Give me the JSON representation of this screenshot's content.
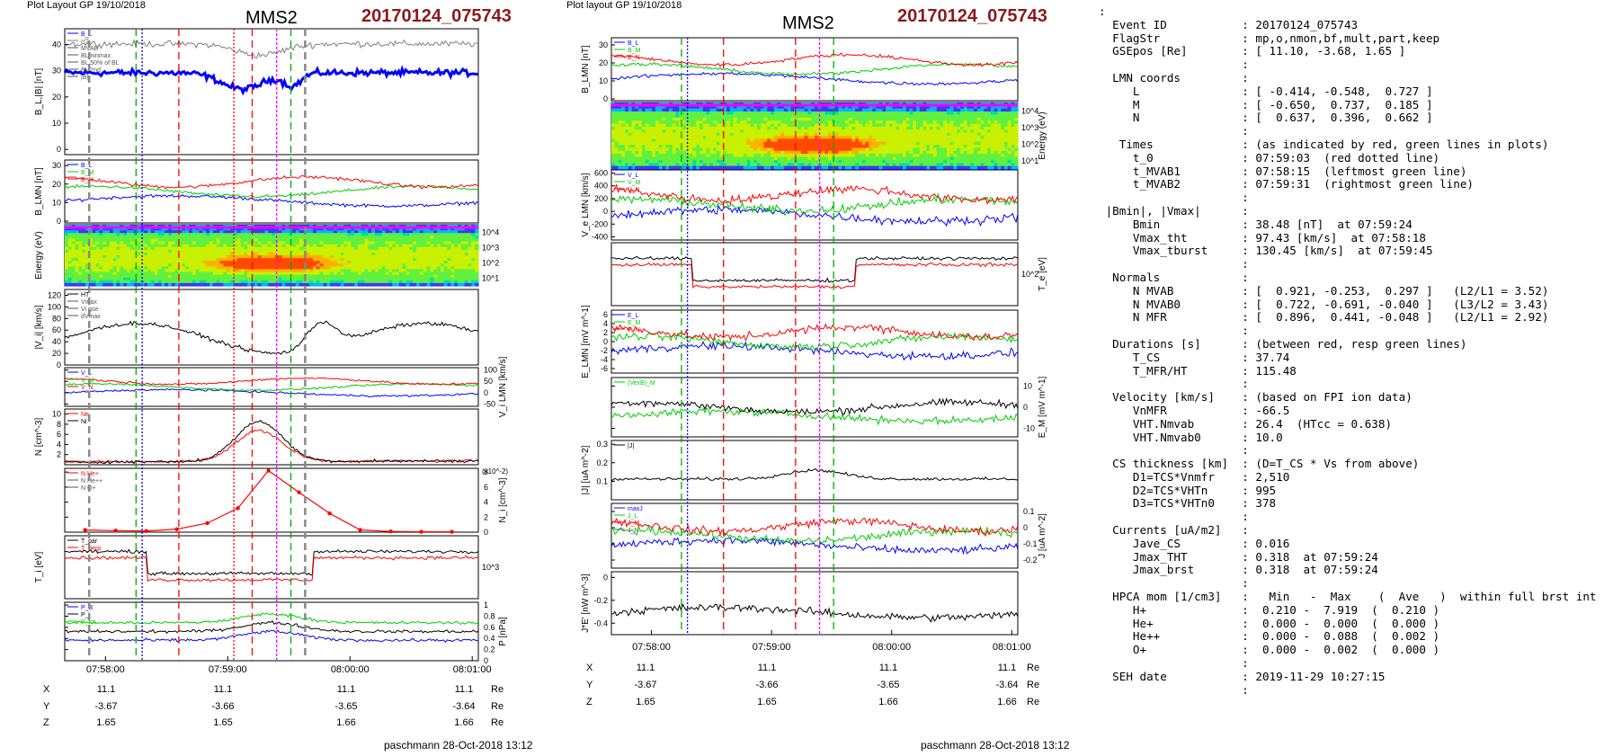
{
  "left_plot": {
    "header": "Plot Layout GP 19/10/2018",
    "title": "MMS2",
    "event": "20170124_075743",
    "signature": "paschmann 28-Oct-2018 13:12",
    "time_ticks": [
      "07:58:00",
      "07:59:00",
      "08:00:00",
      "08:01:00"
    ],
    "position_rows": [
      {
        "name": "X",
        "values": [
          "11.1",
          "11.1",
          "11.1",
          "11.1"
        ],
        "unit": "Re"
      },
      {
        "name": "Y",
        "values": [
          "-3.67",
          "-3.66",
          "-3.65",
          "-3.64"
        ],
        "unit": "Re"
      },
      {
        "name": "Z",
        "values": [
          "1.65",
          "1.65",
          "1.66",
          "1.66"
        ],
        "unit": "Re"
      }
    ]
  },
  "right_plot": {
    "header": "Plot layout GP 19/10/2018",
    "title": "MMS2",
    "event": "20170124_075743",
    "signature": "paschmann 28-Oct-2018 13:12",
    "time_ticks": [
      "07:58:00",
      "07:59:00",
      "08:00:00",
      "08:01:00"
    ],
    "position_rows": [
      {
        "name": "X",
        "values": [
          "11.1",
          "11.1",
          "11.1",
          "11.1"
        ],
        "unit": "Re"
      },
      {
        "name": "Y",
        "values": [
          "-3.67",
          "-3.66",
          "-3.65",
          "-3.64"
        ],
        "unit": "Re"
      },
      {
        "name": "Z",
        "values": [
          "1.65",
          "1.65",
          "1.66",
          "1.66"
        ],
        "unit": "Re"
      }
    ]
  },
  "summary_lines": [
    ":",
    "  Event ID           : 20170124_075743",
    "  FlagStr            : mp,o,nmon,bf,mult,part,keep",
    "  GSEpos [Re]        : [ 11.10, -3.68, 1.65 ]",
    "                     :",
    "  LMN coords         :",
    "     L               : [ -0.414, -0.548,  0.727 ]",
    "     M               : [ -0.650,  0.737,  0.185 ]",
    "     N               : [  0.637,  0.396,  0.662 ]",
    "                     :",
    "   Times             : (as indicated by red, green lines in plots)",
    "     t_0             : 07:59:03  (red dotted line)",
    "     t_MVAB1         : 07:58:15  (leftmost green line)",
    "     t_MVAB2         : 07:59:31  (rightmost green line)",
    "                     :",
    " |Bmin|, |Vmax|      :",
    "     Bmin            : 38.48 [nT]  at 07:59:24",
    "     Vmax_tht        : 97.43 [km/s]  at 07:58:18",
    "     Vmax_tburst     : 130.45 [km/s]  at 07:59:45",
    "                     :",
    "  Normals            :",
    "     N MVAB          : [  0.921, -0.253,  0.297 ]   (L2/L1 = 3.52)",
    "     N MVAB0         : [  0.722, -0.691, -0.040 ]   (L3/L2 = 3.43)",
    "     N MFR           : [  0.896,  0.441, -0.048 ]   (L2/L1 = 2.92)",
    "                     :",
    "  Durations [s]      : (between red, resp green lines)",
    "     T_CS            : 37.74",
    "     T_MFR/HT        : 115.48",
    "                     :",
    "  Velocity [km/s]    : (based on FPI ion data)",
    "     VnMFR           : -66.5",
    "     VHT.Nmvab       : 26.4  (HTcc = 0.638)",
    "     VHT.Nmvab0      : 10.0",
    "                     :",
    "  CS thickness [km]  : (D=T_CS * Vs from above)",
    "     D1=TCS*Vnmfr    : 2,510",
    "     D2=TCS*VHTn     : 995",
    "     D3=TCS*VHTn0    : 378",
    "                     :",
    "  Currents [uA/m2]   :",
    "     Jave_CS         : 0.016",
    "     Jmax_THT        : 0.318  at 07:59:24",
    "     Jmax_brst       : 0.318  at 07:59:24",
    "                     :",
    "  HPCA mom [1/cm3]   :   Min   -  Max    (  Ave   )  within full brst int",
    "     H+              :  0.210 -  7.919  (  0.210 )",
    "     He+             :  0.000 -  0.000  (  0.000 )",
    "     He++            :  0.000 -  0.088  (  0.002 )",
    "     O+              :  0.000 -  0.002  (  0.000 )",
    "                     :",
    "  SEH date           : 2019-11-29 10:27:15",
    "                     :"
  ],
  "chart_data": [
    {
      "type": "line",
      "name": "left-panel-stack",
      "x_axis": {
        "ticks": [
          "07:58:00",
          "07:59:00",
          "08:00:00",
          "08:01:00"
        ]
      },
      "panels": [
        {
          "id": "L1",
          "ylabel": "B_L,|B| [nT]",
          "yticks": [
            0,
            10,
            20,
            30,
            40
          ],
          "ylim": [
            -2,
            46
          ],
          "legend": [
            "B_L",
            "HT",
            "MVAB",
            "BLminmax",
            "BL 50% of BL",
            "BL 2nd",
            "|B|"
          ],
          "series": [
            {
              "name": "|B|",
              "color": "#0000ff"
            },
            {
              "name": "B_L",
              "color": "#808080"
            }
          ]
        },
        {
          "id": "L2",
          "ylabel": "B_LMN [nT]",
          "yticks": [
            0,
            10,
            20,
            30
          ],
          "ylim": [
            -1,
            33
          ],
          "legend": [
            "B_L",
            "B_M",
            "B_N"
          ],
          "series": [
            {
              "name": "B_L",
              "color": "#0000ff"
            },
            {
              "name": "B_M",
              "color": "#00cc00"
            },
            {
              "name": "B_N",
              "color": "#ff0000"
            }
          ]
        },
        {
          "id": "L3",
          "ylabel": "Energy (eV)",
          "type": "spectrogram",
          "ytick_labels": [
            "10^1",
            "10^2",
            "10^3",
            "10^4"
          ]
        },
        {
          "id": "L4",
          "ylabel": "|V_i| [km/s]",
          "yticks": [
            0,
            20,
            40,
            60,
            80,
            100,
            120
          ],
          "ylim": [
            0,
            130
          ],
          "legend": [
            "HT",
            "Vmax",
            "Vi gse",
            "dVmax"
          ],
          "series": [
            {
              "name": "|V_i|",
              "color": "#000000"
            }
          ]
        },
        {
          "id": "L5",
          "ylabel": "V_i LMN [km/s]",
          "yticks": [
            100,
            50,
            0,
            -50
          ],
          "ylim": [
            -60,
            110
          ],
          "legend": [
            "V_L",
            "V_M",
            "V_N"
          ],
          "series": [
            {
              "name": "V_L",
              "color": "#0000ff"
            },
            {
              "name": "V_M",
              "color": "#00cc00"
            },
            {
              "name": "V_N",
              "color": "#ff0000"
            }
          ]
        },
        {
          "id": "L6",
          "ylabel": "N [cm^-3]",
          "yticks": [
            2,
            4,
            6,
            8,
            10
          ],
          "ylim": [
            0,
            11
          ],
          "legend": [
            "Ne",
            "Ni"
          ],
          "series": [
            {
              "name": "Ne",
              "color": "#ff0000"
            },
            {
              "name": "Ni",
              "color": "#000000"
            }
          ]
        },
        {
          "id": "L7",
          "ylabel": "N_i [cm^-3]",
          "yscale": "(x10^-2)",
          "yticks": [
            0,
            2,
            4,
            6,
            8
          ],
          "ylim": [
            0,
            8.5
          ],
          "legend": [
            "N He+",
            "N He++",
            "N O+"
          ],
          "series": [
            {
              "name": "N He++",
              "color": "#ff0000",
              "x": [
                "07:57:50",
                "07:58:05",
                "07:58:20",
                "07:58:35",
                "07:58:50",
                "07:59:05",
                "07:59:20",
                "07:59:35",
                "07:59:50",
                "08:00:05",
                "08:00:20",
                "08:00:35",
                "08:00:50"
              ],
              "values": [
                0.3,
                0.2,
                0.15,
                0.4,
                1.2,
                3.2,
                8.2,
                5.3,
                2.5,
                0.3,
                0.1,
                0.05,
                0.05
              ]
            }
          ]
        },
        {
          "id": "L8",
          "ylabel": "T_i [eV]",
          "ytick_labels": [
            "10^3"
          ],
          "legend": [
            "T_par",
            "T_perp"
          ],
          "series": [
            {
              "name": "T_par",
              "color": "#000000"
            },
            {
              "name": "T_perp",
              "color": "#ff0000"
            }
          ]
        },
        {
          "id": "L9",
          "ylabel": "P [nPa]",
          "yticks": [
            0.0,
            0.2,
            0.4,
            0.6,
            0.8,
            1.0
          ],
          "ylim": [
            0,
            1.05
          ],
          "legend": [
            "P_B",
            "P_i",
            "P_tot"
          ],
          "series": [
            {
              "name": "P_B",
              "color": "#0000ff"
            },
            {
              "name": "P_i",
              "color": "#000000"
            },
            {
              "name": "P_tot",
              "color": "#00cc00"
            }
          ]
        }
      ]
    },
    {
      "type": "line",
      "name": "right-panel-stack",
      "x_axis": {
        "ticks": [
          "07:58:00",
          "07:59:00",
          "08:00:00",
          "08:01:00"
        ]
      },
      "panels": [
        {
          "id": "R1",
          "ylabel": "B_LMN [nT]",
          "yticks": [
            0,
            10,
            20,
            30
          ],
          "ylim": [
            -1,
            34
          ],
          "legend": [
            "B_L",
            "B_M",
            "B_N"
          ],
          "series": [
            {
              "name": "B_L",
              "color": "#0000ff"
            },
            {
              "name": "B_M",
              "color": "#00cc00"
            },
            {
              "name": "B_N",
              "color": "#ff0000"
            }
          ]
        },
        {
          "id": "R2",
          "ylabel": "Energy (eV)",
          "type": "spectrogram",
          "ytick_labels": [
            "10^1",
            "10^2",
            "10^3",
            "10^4"
          ]
        },
        {
          "id": "R3",
          "ylabel": "V_e LMN [km/s]",
          "yticks": [
            600,
            400,
            200,
            0,
            -200,
            -400
          ],
          "ylim": [
            -450,
            650
          ],
          "legend": [
            "V_L",
            "V_M",
            "V_N"
          ],
          "series": [
            {
              "name": "V_L",
              "color": "#0000ff"
            },
            {
              "name": "V_M",
              "color": "#00cc00"
            },
            {
              "name": "V_N",
              "color": "#ff0000"
            }
          ]
        },
        {
          "id": "R4",
          "ylabel": "T_e [eV]",
          "ytick_labels": [
            "10^2"
          ],
          "series": [
            {
              "name": "T_par",
              "color": "#000000"
            },
            {
              "name": "T_perp",
              "color": "#ff0000"
            }
          ]
        },
        {
          "id": "R5",
          "ylabel": "E_LMN [mV m^-1]",
          "yticks": [
            6,
            4,
            2,
            0,
            -2,
            -4,
            -6
          ],
          "ylim": [
            -7,
            7
          ],
          "legend": [
            "E_L",
            "E_M",
            "E_N"
          ],
          "series": [
            {
              "name": "E_L",
              "color": "#0000ff"
            },
            {
              "name": "E_M",
              "color": "#00cc00"
            },
            {
              "name": "E_N",
              "color": "#ff0000"
            }
          ]
        },
        {
          "id": "R6",
          "ylabel": "E_M [mV m^-1]",
          "yticks": [
            10,
            0,
            -10
          ],
          "ylim": [
            -14,
            14
          ],
          "legend": [
            "(VexB)_M"
          ],
          "series": [
            {
              "name": "(VexB)_M",
              "color": "#00cc00"
            },
            {
              "name": "E_M",
              "color": "#000000"
            }
          ]
        },
        {
          "id": "R7",
          "ylabel": "|J| [uA m^-2]",
          "yticks": [
            0.1,
            0.2,
            0.3
          ],
          "ylim": [
            0,
            0.32
          ],
          "legend": [
            "|J|"
          ],
          "series": [
            {
              "name": "|J|",
              "color": "#000000"
            }
          ]
        },
        {
          "id": "R8",
          "ylabel": "J [uA m^-2]",
          "yticks": [
            0.1,
            0.0,
            -0.1,
            -0.2
          ],
          "ylim": [
            -0.25,
            0.15
          ],
          "legend": [
            "maxJ",
            "J_L",
            "J_M",
            "J_N"
          ],
          "series": [
            {
              "name": "J_L",
              "color": "#0000ff"
            },
            {
              "name": "J_M",
              "color": "#00cc00"
            },
            {
              "name": "J_N",
              "color": "#ff0000"
            }
          ]
        },
        {
          "id": "R9",
          "ylabel": "J*E' [nW m^-3]",
          "yticks": [
            0.0,
            -0.2,
            -0.4
          ],
          "ylim": [
            -0.5,
            0.05
          ],
          "series": [
            {
              "name": "J*E'",
              "color": "#000000"
            }
          ]
        }
      ]
    }
  ]
}
